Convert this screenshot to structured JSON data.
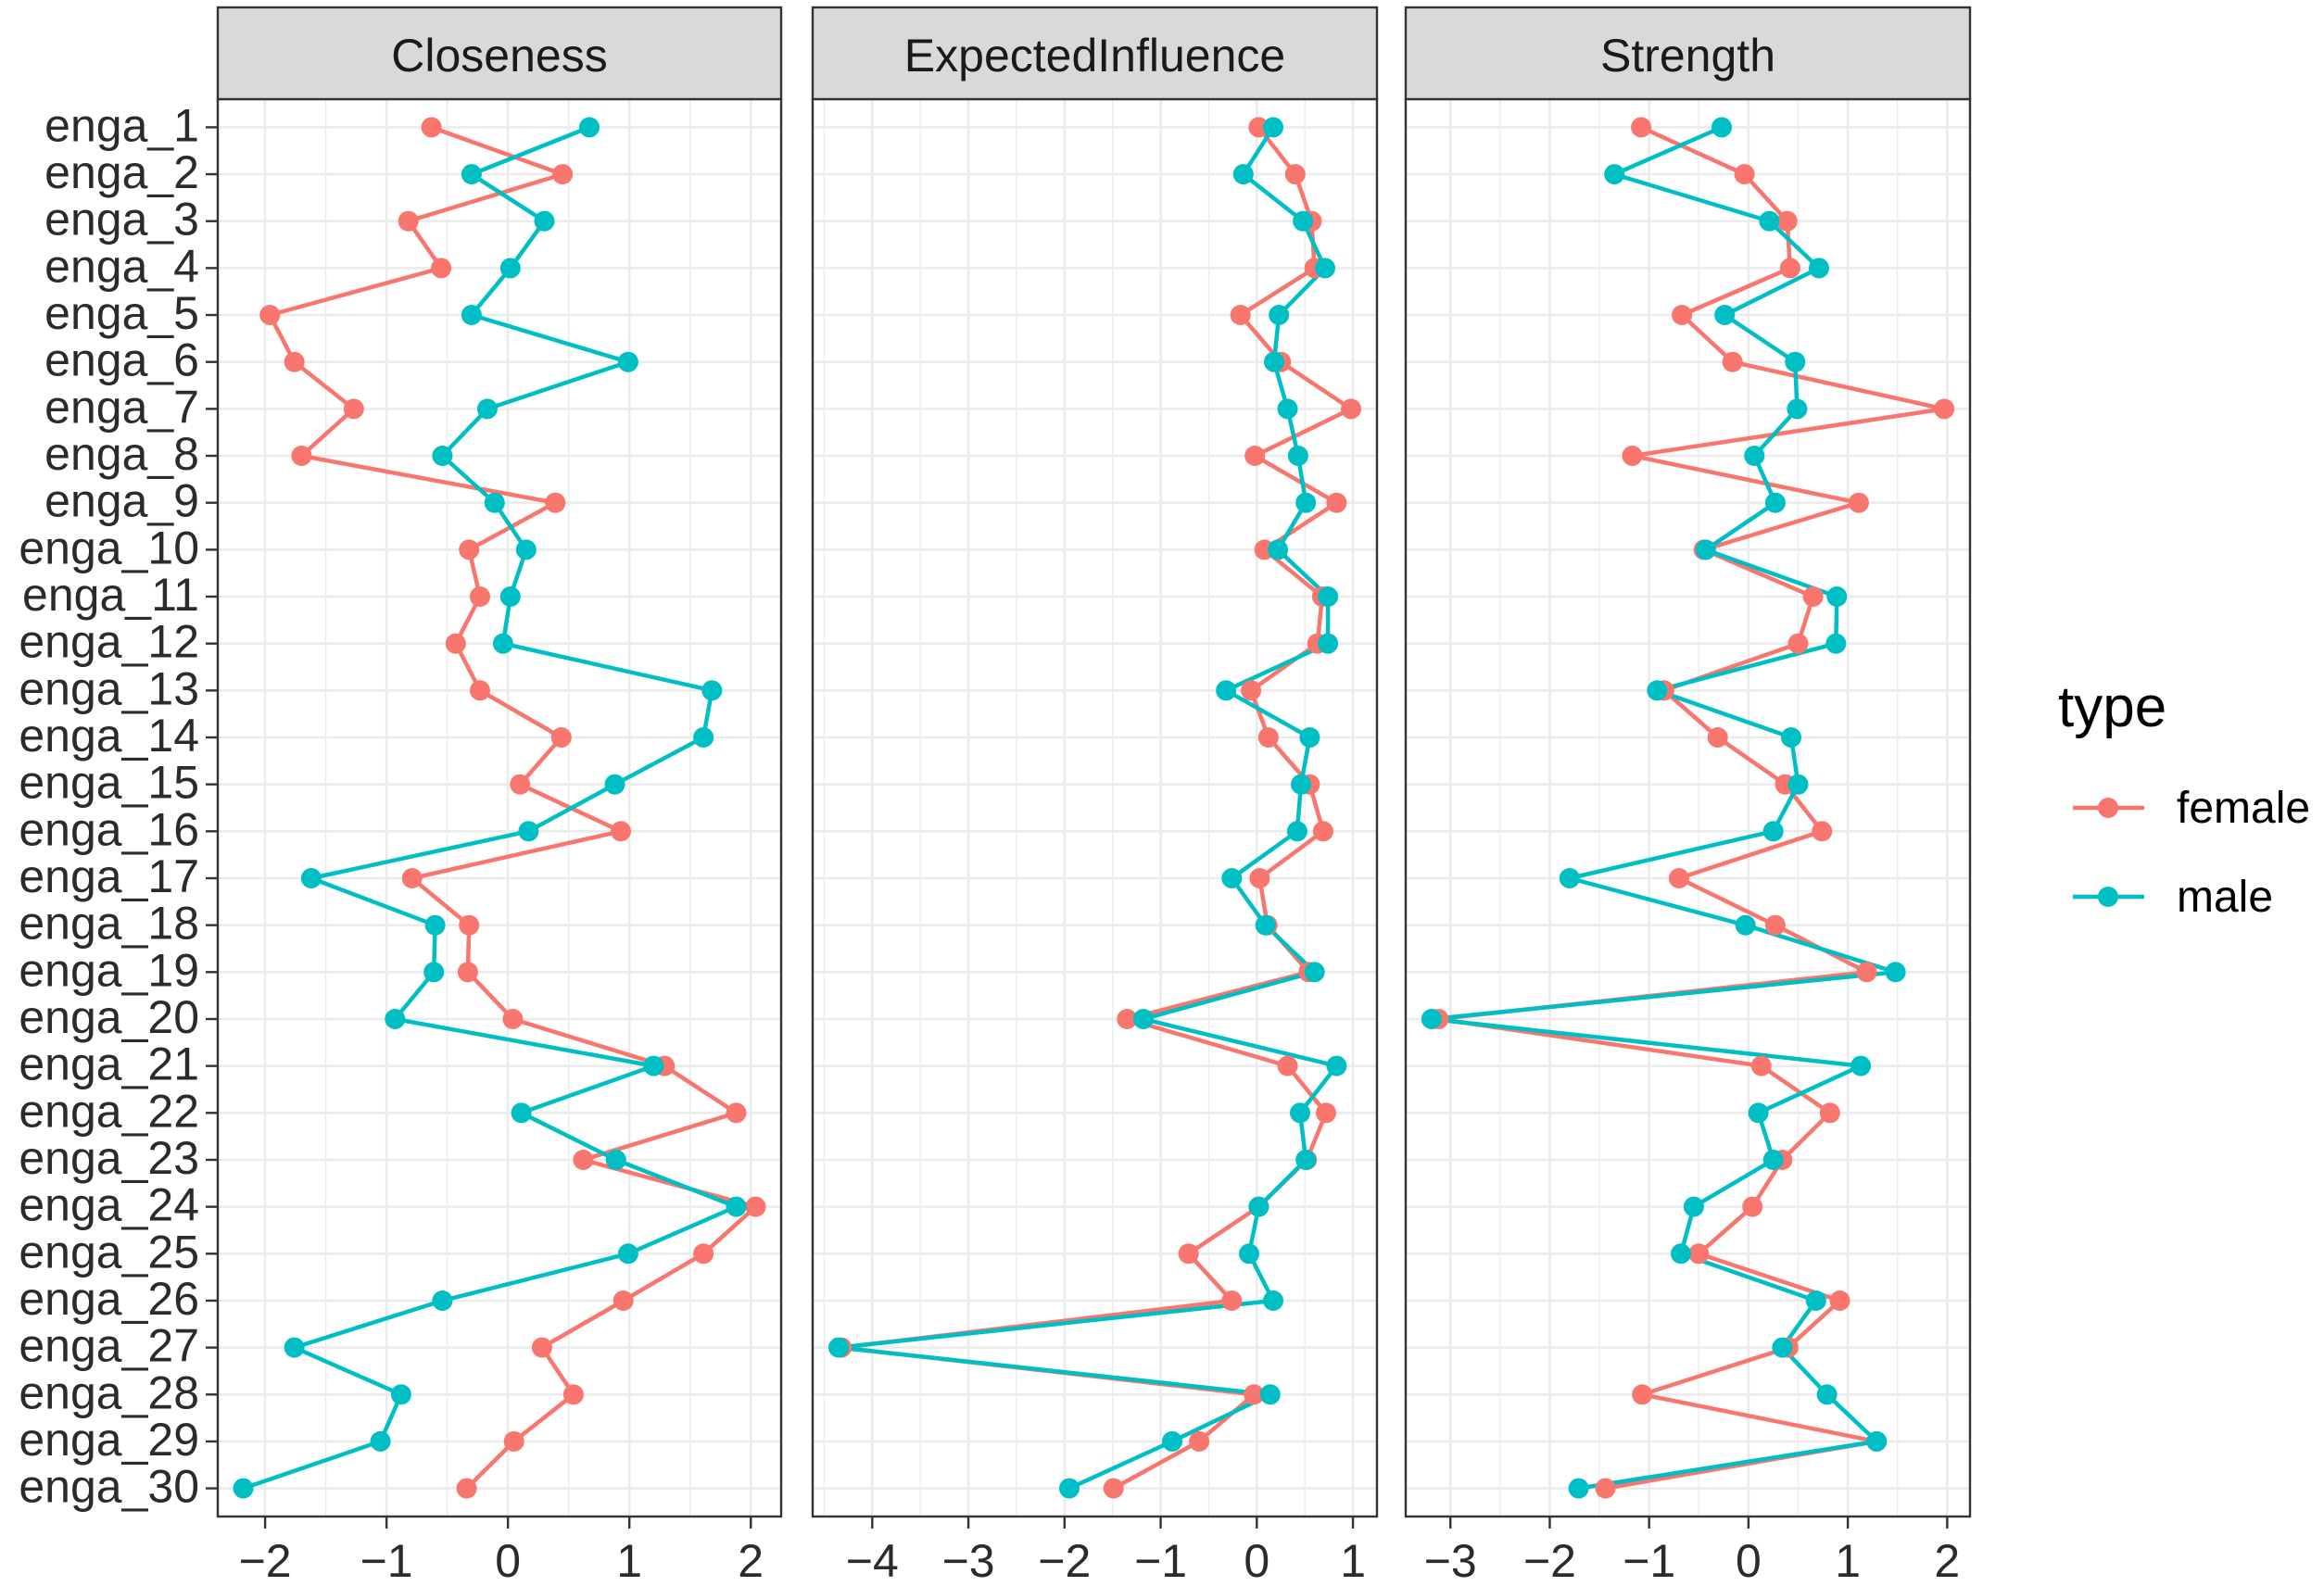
{
  "chart_data": {
    "type": "line",
    "grid": true,
    "categories": [
      "enga_1",
      "enga_2",
      "enga_3",
      "enga_4",
      "enga_5",
      "enga_6",
      "enga_7",
      "enga_8",
      "enga_9",
      "enga_10",
      "enga_11",
      "enga_12",
      "enga_13",
      "enga_14",
      "enga_15",
      "enga_16",
      "enga_17",
      "enga_18",
      "enga_19",
      "enga_20",
      "enga_21",
      "enga_22",
      "enga_23",
      "enga_24",
      "enga_25",
      "enga_26",
      "enga_27",
      "enga_28",
      "enga_29",
      "enga_30"
    ],
    "series": [
      {
        "name": "female",
        "color": "#F8766D"
      },
      {
        "name": "male",
        "color": "#00BFC4"
      }
    ],
    "legend": {
      "title": "type",
      "position": "right"
    },
    "facets": [
      {
        "title": "Closeness",
        "xlim": [
          -2.39,
          2.25
        ],
        "xticks": [
          -2,
          -1,
          0,
          1,
          2
        ],
        "xtick_labels": [
          "−2",
          "−1",
          "0",
          "1",
          "2"
        ],
        "series": [
          {
            "values": [
              -0.63,
              0.45,
              -0.82,
              -0.55,
              -1.96,
              -1.76,
              -1.27,
              -1.7,
              0.39,
              -0.32,
              -0.23,
              -0.43,
              -0.23,
              0.44,
              0.1,
              0.93,
              -0.79,
              -0.32,
              -0.33,
              0.04,
              1.29,
              1.88,
              0.62,
              2.04,
              1.61,
              0.95,
              0.28,
              0.54,
              0.05,
              -0.34
            ]
          },
          {
            "values": [
              0.67,
              -0.3,
              0.3,
              0.02,
              -0.3,
              0.99,
              -0.17,
              -0.54,
              -0.11,
              0.15,
              0.02,
              -0.04,
              1.68,
              1.61,
              0.88,
              0.17,
              -1.62,
              -0.6,
              -0.61,
              -0.93,
              1.2,
              0.11,
              0.89,
              1.88,
              0.99,
              -0.54,
              -1.76,
              -0.88,
              -1.05,
              -2.18
            ]
          }
        ]
      },
      {
        "title": "ExpectedInfluence",
        "xlim": [
          -4.62,
          1.25
        ],
        "xticks": [
          -4,
          -3,
          -2,
          -1,
          0,
          1
        ],
        "xtick_labels": [
          "−4",
          "−3",
          "−2",
          "−1",
          "0",
          "1"
        ],
        "series": [
          {
            "values": [
              0.02,
              0.4,
              0.57,
              0.6,
              -0.17,
              0.25,
              0.98,
              -0.02,
              0.83,
              0.08,
              0.68,
              0.63,
              -0.06,
              0.12,
              0.55,
              0.69,
              0.03,
              0.11,
              0.54,
              -1.35,
              0.32,
              0.72,
              0.52,
              0.02,
              -0.71,
              -0.26,
              -4.32,
              -0.03,
              -0.6,
              -1.49
            ]
          },
          {
            "values": [
              0.17,
              -0.14,
              0.48,
              0.71,
              0.23,
              0.18,
              0.32,
              0.43,
              0.51,
              0.22,
              0.74,
              0.74,
              -0.32,
              0.55,
              0.46,
              0.42,
              -0.26,
              0.09,
              0.6,
              -1.18,
              0.83,
              0.45,
              0.51,
              0.02,
              -0.08,
              0.17,
              -4.35,
              0.14,
              -0.88,
              -1.95
            ]
          }
        ]
      },
      {
        "title": "Strength",
        "xlim": [
          -3.45,
          2.23
        ],
        "xticks": [
          -3,
          -2,
          -1,
          0,
          1,
          2
        ],
        "xtick_labels": [
          "−3",
          "−2",
          "−1",
          "0",
          "1",
          "2"
        ],
        "series": [
          {
            "values": [
              -1.08,
              -0.04,
              0.39,
              0.42,
              -0.67,
              -0.16,
              1.97,
              -1.17,
              1.11,
              -0.45,
              0.65,
              0.5,
              -0.85,
              -0.31,
              0.37,
              0.74,
              -0.7,
              0.27,
              1.19,
              -3.12,
              0.13,
              0.82,
              0.34,
              0.04,
              -0.5,
              0.92,
              0.4,
              -1.07,
              1.29,
              -1.44
            ]
          },
          {
            "values": [
              -0.27,
              -1.35,
              0.21,
              0.71,
              -0.24,
              0.47,
              0.49,
              0.06,
              0.27,
              -0.43,
              0.89,
              0.88,
              -0.92,
              0.43,
              0.5,
              0.25,
              -1.8,
              -0.03,
              1.48,
              -3.19,
              1.13,
              0.1,
              0.25,
              -0.55,
              -0.68,
              0.68,
              0.34,
              0.79,
              1.29,
              -1.71
            ]
          }
        ]
      }
    ]
  }
}
